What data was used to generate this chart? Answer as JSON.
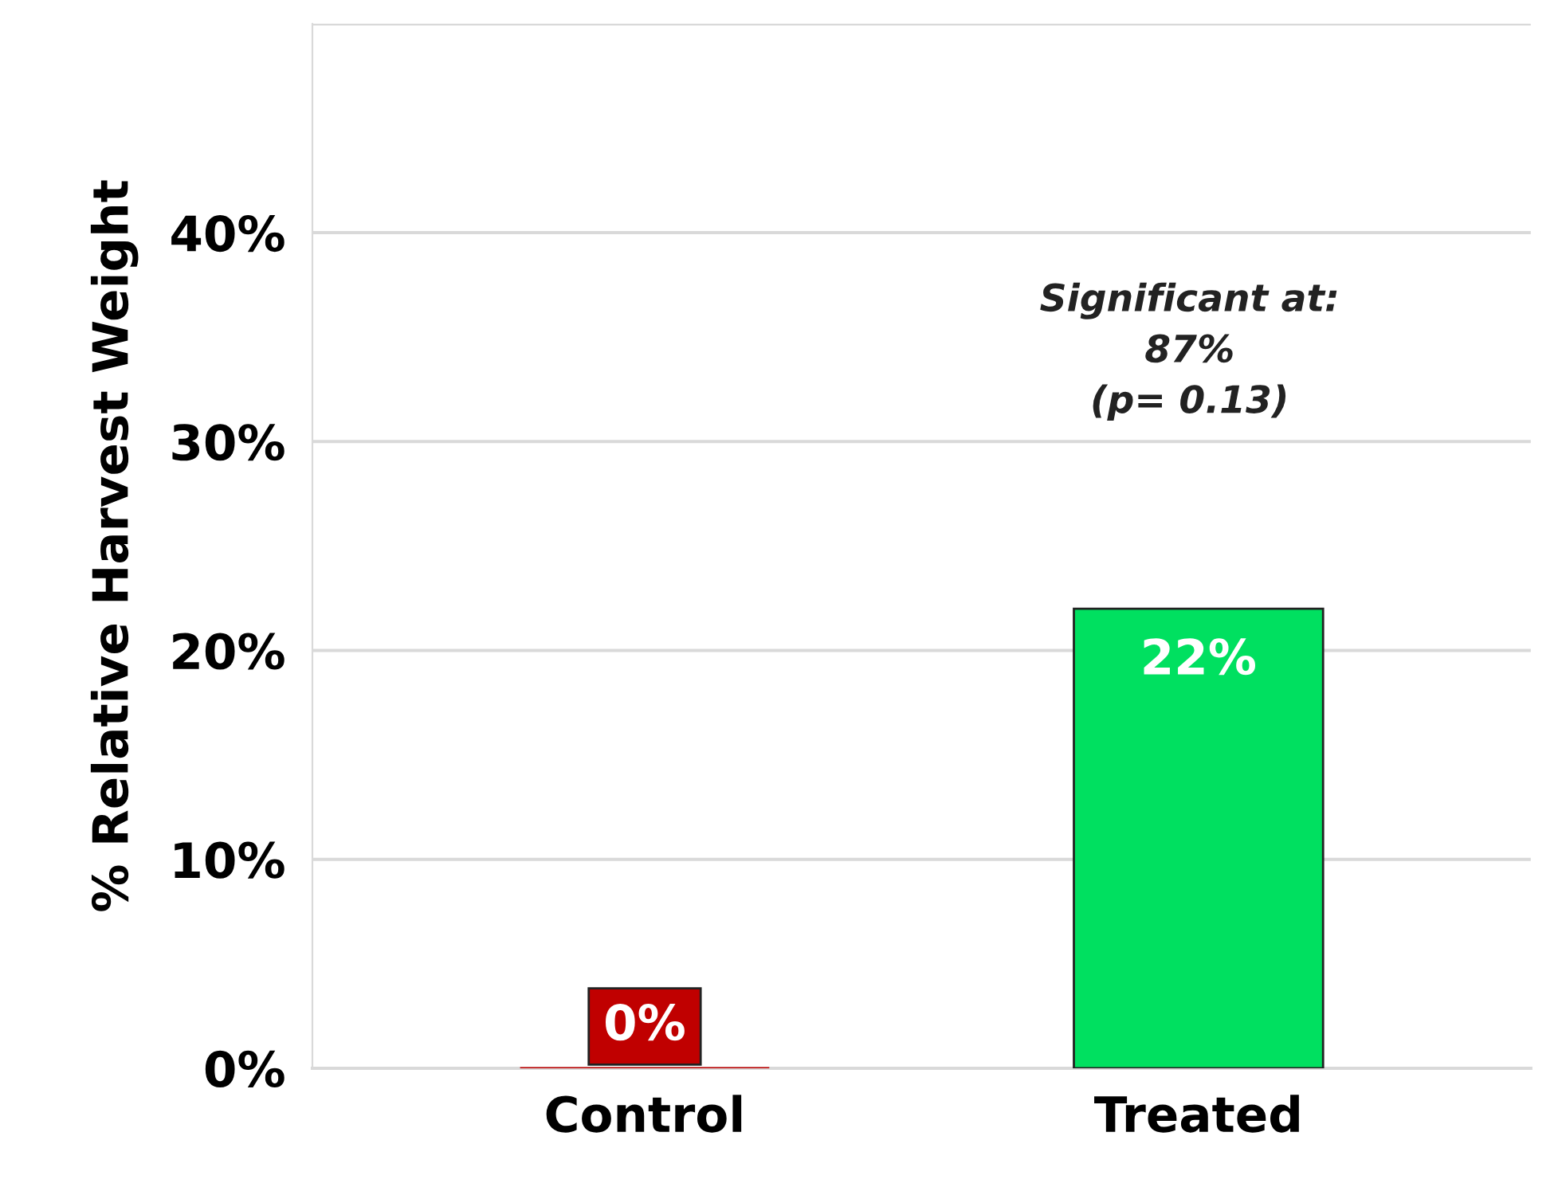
{
  "chart_data": {
    "type": "bar",
    "ylabel": "% Relative Harvest Weight",
    "categories": [
      "Control",
      "Treated"
    ],
    "values": [
      0,
      22
    ],
    "colors": [
      "#c00000",
      "#00e060"
    ],
    "value_labels": [
      "0%",
      "22%"
    ],
    "ylim": [
      0,
      50
    ],
    "yticks": [
      {
        "value": 0,
        "label": "0%"
      },
      {
        "value": 10,
        "label": "10%"
      },
      {
        "value": 20,
        "label": "20%"
      },
      {
        "value": 30,
        "label": "30%"
      },
      {
        "value": 40,
        "label": "40%"
      },
      {
        "value": 50,
        "label": null
      }
    ],
    "grid": "y",
    "annotations": [
      "Significant at:\n87%\n(p= 0.13)"
    ]
  }
}
